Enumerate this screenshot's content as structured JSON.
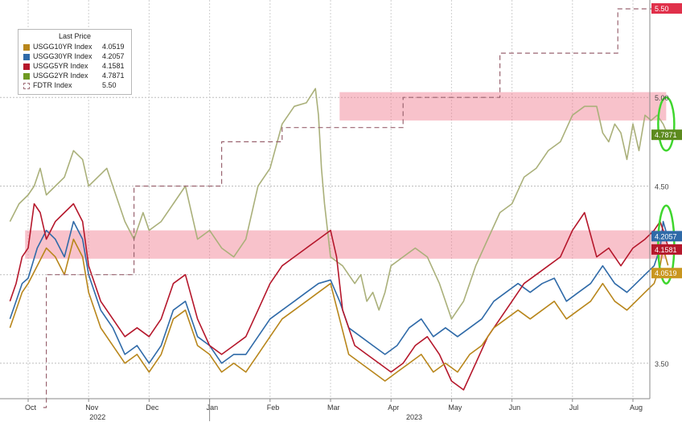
{
  "legend": {
    "title": "Last Price",
    "items": [
      {
        "name": "USGG10YR Index",
        "value": "4.0519",
        "color": "#b8861b",
        "swatch": "solid"
      },
      {
        "name": "USGG30YR Index",
        "value": "4.2057",
        "color": "#2f6aa8",
        "swatch": "solid"
      },
      {
        "name": "USGG5YR Index",
        "value": "4.1581",
        "color": "#b5172b",
        "swatch": "solid"
      },
      {
        "name": "USGG2YR Index",
        "value": "4.7871",
        "color": "#6f9a22",
        "swatch": "solid"
      },
      {
        "name": "FDTR Index",
        "value": "5.50",
        "color": "#a0707a",
        "swatch": "dashed"
      }
    ]
  },
  "chart_data": {
    "type": "line",
    "title": "",
    "xlabel": "",
    "ylabel": "",
    "ylim": [
      3.3,
      5.55
    ],
    "y_axis_side": "right",
    "y_ticks": [
      "3.50",
      "4.00",
      "4.50",
      "5.00"
    ],
    "x_months": [
      "Oct",
      "Nov",
      "Dec",
      "Jan",
      "Feb",
      "Mar",
      "Apr",
      "May",
      "Jun",
      "Jul",
      "Aug"
    ],
    "x_years": [
      "2022",
      "2023"
    ],
    "grid": true,
    "legend_position": "top-left",
    "last_value_labels": [
      {
        "value": "5.50",
        "series": "FDTR Index",
        "color": "#e0304a"
      },
      {
        "value": "4.7871",
        "series": "USGG2YR Index",
        "color": "#5c8a1e"
      },
      {
        "value": "4.2057",
        "series": "USGG30YR Index",
        "color": "#2f6aa8"
      },
      {
        "value": "4.1581",
        "series": "USGG5YR Index",
        "color": "#b5172b"
      },
      {
        "value": "4.0519",
        "series": "USGG10YR Index",
        "color": "#c9961f"
      }
    ],
    "highlight_bands": [
      {
        "y0": 4.87,
        "y1": 5.03,
        "start_month": 5.15,
        "end_month": 10.55
      },
      {
        "y0": 4.09,
        "y1": 4.25,
        "start_month": -0.05,
        "end_month": 10.55
      }
    ],
    "ellipses": [
      {
        "center_month": 10.55,
        "center_y": 4.85,
        "ry_value": 0.15
      },
      {
        "center_month": 10.55,
        "center_y": 4.17,
        "ry_value": 0.22
      }
    ],
    "x_unit": "months since Oct 1 2022",
    "series": [
      {
        "name": "USGG2YR Index",
        "color": "#aab07a",
        "x": [
          -0.3,
          -0.15,
          0,
          0.1,
          0.2,
          0.3,
          0.45,
          0.6,
          0.75,
          0.9,
          1.0,
          1.15,
          1.3,
          1.45,
          1.6,
          1.75,
          1.9,
          2.0,
          2.2,
          2.4,
          2.6,
          2.8,
          3.0,
          3.2,
          3.4,
          3.6,
          3.8,
          4.0,
          4.2,
          4.4,
          4.6,
          4.75,
          4.8,
          4.85,
          4.9,
          5.0,
          5.2,
          5.4,
          5.5,
          5.6,
          5.7,
          5.8,
          5.9,
          6.0,
          6.2,
          6.4,
          6.6,
          6.8,
          7.0,
          7.2,
          7.4,
          7.6,
          7.8,
          8.0,
          8.2,
          8.4,
          8.6,
          8.8,
          9.0,
          9.2,
          9.4,
          9.5,
          9.6,
          9.7,
          9.8,
          9.9,
          10.0,
          10.1,
          10.2,
          10.3,
          10.4,
          10.5,
          10.58
        ],
        "values": [
          4.3,
          4.4,
          4.45,
          4.5,
          4.6,
          4.45,
          4.5,
          4.55,
          4.7,
          4.65,
          4.5,
          4.55,
          4.6,
          4.45,
          4.3,
          4.2,
          4.35,
          4.25,
          4.3,
          4.4,
          4.5,
          4.2,
          4.25,
          4.15,
          4.1,
          4.2,
          4.5,
          4.6,
          4.85,
          4.95,
          4.97,
          5.05,
          4.9,
          4.6,
          4.4,
          4.1,
          4.05,
          3.95,
          4.0,
          3.85,
          3.9,
          3.8,
          3.9,
          4.05,
          4.1,
          4.15,
          4.1,
          3.95,
          3.75,
          3.85,
          4.05,
          4.2,
          4.35,
          4.4,
          4.55,
          4.6,
          4.7,
          4.75,
          4.9,
          4.95,
          4.95,
          4.8,
          4.75,
          4.85,
          4.8,
          4.65,
          4.85,
          4.7,
          4.9,
          4.87,
          4.9,
          4.85,
          4.7871
        ]
      },
      {
        "name": "USGG30YR Index",
        "color": "#2f6aa8",
        "x": [
          -0.3,
          -0.2,
          -0.1,
          0,
          0.15,
          0.3,
          0.45,
          0.6,
          0.75,
          0.9,
          1.0,
          1.2,
          1.4,
          1.6,
          1.8,
          2.0,
          2.2,
          2.4,
          2.6,
          2.8,
          3.0,
          3.2,
          3.4,
          3.6,
          3.8,
          4.0,
          4.2,
          4.4,
          4.6,
          4.8,
          5.0,
          5.15,
          5.3,
          5.5,
          5.7,
          5.9,
          6.1,
          6.3,
          6.5,
          6.7,
          6.9,
          7.1,
          7.3,
          7.5,
          7.7,
          7.9,
          8.1,
          8.3,
          8.5,
          8.7,
          8.9,
          9.1,
          9.3,
          9.5,
          9.7,
          9.9,
          10.05,
          10.2,
          10.35,
          10.45,
          10.5,
          10.58
        ],
        "values": [
          3.75,
          3.85,
          3.95,
          3.98,
          4.15,
          4.25,
          4.2,
          4.1,
          4.3,
          4.2,
          4.0,
          3.8,
          3.7,
          3.55,
          3.6,
          3.5,
          3.6,
          3.8,
          3.85,
          3.65,
          3.6,
          3.5,
          3.55,
          3.55,
          3.65,
          3.75,
          3.8,
          3.85,
          3.9,
          3.95,
          3.97,
          3.85,
          3.7,
          3.65,
          3.6,
          3.55,
          3.6,
          3.7,
          3.75,
          3.65,
          3.7,
          3.65,
          3.7,
          3.75,
          3.85,
          3.9,
          3.95,
          3.9,
          3.95,
          3.98,
          3.85,
          3.9,
          3.95,
          4.05,
          3.95,
          3.9,
          3.95,
          4.0,
          4.05,
          4.15,
          4.3,
          4.2057
        ]
      },
      {
        "name": "USGG5YR Index",
        "color": "#b5172b",
        "x": [
          -0.3,
          -0.2,
          -0.1,
          0,
          0.1,
          0.2,
          0.3,
          0.45,
          0.6,
          0.75,
          0.9,
          1.0,
          1.2,
          1.4,
          1.6,
          1.8,
          2.0,
          2.2,
          2.4,
          2.6,
          2.8,
          3.0,
          3.2,
          3.4,
          3.6,
          3.8,
          4.0,
          4.2,
          4.4,
          4.6,
          4.8,
          5.0,
          5.1,
          5.2,
          5.4,
          5.6,
          5.8,
          6.0,
          6.2,
          6.4,
          6.6,
          6.8,
          7.0,
          7.2,
          7.4,
          7.6,
          7.8,
          8.0,
          8.2,
          8.4,
          8.6,
          8.8,
          9.0,
          9.2,
          9.4,
          9.6,
          9.8,
          10.0,
          10.2,
          10.35,
          10.45,
          10.5,
          10.58
        ],
        "values": [
          3.85,
          3.95,
          4.1,
          4.15,
          4.4,
          4.35,
          4.2,
          4.3,
          4.35,
          4.4,
          4.3,
          4.05,
          3.85,
          3.75,
          3.65,
          3.7,
          3.65,
          3.75,
          3.95,
          4.0,
          3.75,
          3.6,
          3.55,
          3.6,
          3.65,
          3.8,
          3.95,
          4.05,
          4.1,
          4.15,
          4.2,
          4.25,
          4.1,
          3.8,
          3.6,
          3.55,
          3.5,
          3.45,
          3.5,
          3.6,
          3.65,
          3.55,
          3.4,
          3.35,
          3.5,
          3.65,
          3.75,
          3.85,
          3.95,
          4.0,
          4.05,
          4.1,
          4.25,
          4.35,
          4.1,
          4.15,
          4.05,
          4.15,
          4.2,
          4.25,
          4.3,
          4.25,
          4.1581
        ]
      },
      {
        "name": "USGG10YR Index",
        "color": "#b8861b",
        "x": [
          -0.3,
          -0.2,
          -0.1,
          0,
          0.15,
          0.3,
          0.45,
          0.6,
          0.75,
          0.9,
          1.0,
          1.2,
          1.4,
          1.6,
          1.8,
          2.0,
          2.2,
          2.4,
          2.6,
          2.8,
          3.0,
          3.2,
          3.4,
          3.6,
          3.8,
          4.0,
          4.2,
          4.4,
          4.6,
          4.8,
          5.0,
          5.15,
          5.3,
          5.5,
          5.7,
          5.9,
          6.1,
          6.3,
          6.5,
          6.7,
          6.9,
          7.1,
          7.3,
          7.5,
          7.7,
          7.9,
          8.1,
          8.3,
          8.5,
          8.7,
          8.9,
          9.1,
          9.3,
          9.5,
          9.7,
          9.9,
          10.05,
          10.2,
          10.35,
          10.45,
          10.5,
          10.58
        ],
        "values": [
          3.7,
          3.8,
          3.9,
          3.95,
          4.05,
          4.15,
          4.1,
          4.0,
          4.2,
          4.1,
          3.9,
          3.7,
          3.6,
          3.5,
          3.55,
          3.45,
          3.55,
          3.75,
          3.8,
          3.6,
          3.55,
          3.45,
          3.5,
          3.45,
          3.55,
          3.65,
          3.75,
          3.8,
          3.85,
          3.9,
          3.95,
          3.75,
          3.55,
          3.5,
          3.45,
          3.4,
          3.45,
          3.5,
          3.55,
          3.45,
          3.5,
          3.45,
          3.55,
          3.6,
          3.7,
          3.75,
          3.8,
          3.75,
          3.8,
          3.85,
          3.75,
          3.8,
          3.85,
          3.95,
          3.85,
          3.8,
          3.85,
          3.9,
          3.95,
          4.05,
          4.15,
          4.0519
        ]
      },
      {
        "name": "FDTR Index",
        "color": "#9a6470",
        "dashed": true,
        "step": true,
        "x": [
          0.25,
          0.3,
          1.75,
          3.2,
          4.2,
          5.1,
          6.2,
          7.8,
          9.75,
          10.6
        ],
        "values": [
          3.25,
          4.0,
          4.5,
          4.75,
          4.83,
          4.83,
          5.0,
          5.25,
          5.5,
          5.5
        ]
      }
    ]
  }
}
